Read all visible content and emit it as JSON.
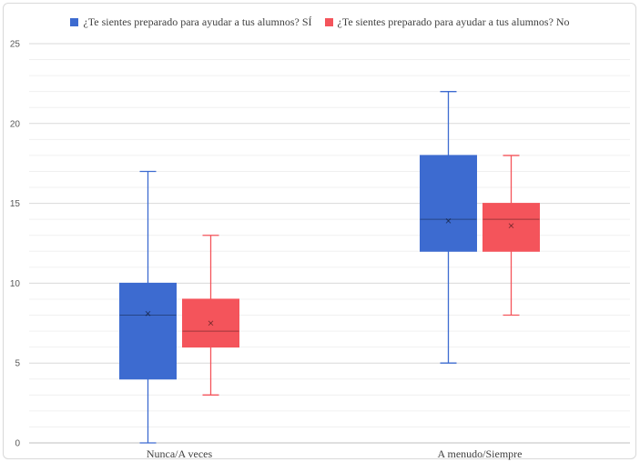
{
  "chart_data": {
    "type": "box",
    "categories": [
      "Nunca/A veces",
      "A menudo/Siempre"
    ],
    "ylim": [
      0,
      25
    ],
    "yticks": [
      0,
      5,
      10,
      15,
      20,
      25
    ],
    "grid": true,
    "legend_position": "top",
    "series": [
      {
        "name": "¿Te sientes preparado para ayudar a tus alumnos? SÍ",
        "color": "#3d6bd0",
        "boxes": [
          {
            "min": 0,
            "q1": 4,
            "median": 8,
            "mean": 8.1,
            "q3": 10,
            "max": 17
          },
          {
            "min": 5,
            "q1": 12,
            "median": 14,
            "mean": 13.9,
            "q3": 18,
            "max": 22
          }
        ]
      },
      {
        "name": "¿Te sientes preparado para ayudar a tus alumnos? No",
        "color": "#f4545b",
        "boxes": [
          {
            "min": 3,
            "q1": 6,
            "median": 7,
            "mean": 7.5,
            "q3": 9,
            "max": 13
          },
          {
            "min": 8,
            "q1": 12,
            "median": 14,
            "mean": 13.6,
            "q3": 15,
            "max": 18
          }
        ]
      }
    ]
  }
}
